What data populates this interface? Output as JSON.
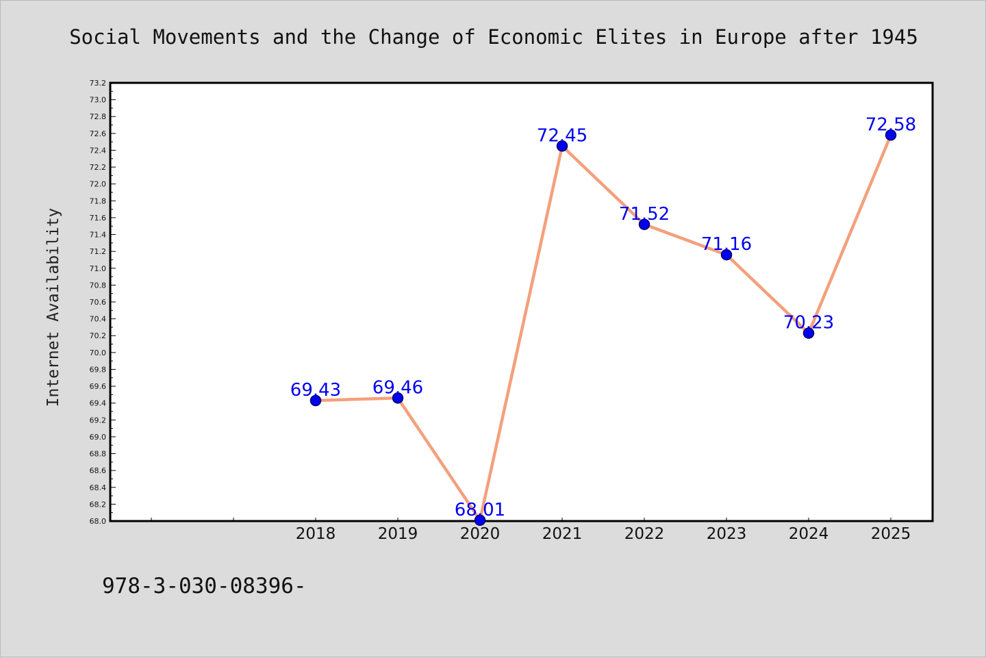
{
  "chart_data": {
    "type": "line",
    "title": "Social Movements and the Change of Economic Elites in Europe after 1945",
    "xlabel": "",
    "ylabel": "Internet Availability",
    "categories": [
      "2018",
      "2019",
      "2020",
      "2021",
      "2022",
      "2023",
      "2024",
      "2025"
    ],
    "series": [
      {
        "values": [
          69.43,
          69.46,
          68.01,
          72.45,
          71.52,
          71.16,
          70.23,
          72.58
        ],
        "data_labels": [
          "69.43",
          "69.46",
          "68.01",
          "72.45",
          "71.52",
          "71.16",
          "70.23",
          "72.58"
        ]
      }
    ],
    "ylim": [
      68.0,
      73.2
    ],
    "yticks": [
      "68.0",
      "68.2",
      "68.4",
      "68.6",
      "68.8",
      "69.0",
      "69.2",
      "69.4",
      "69.6",
      "69.8",
      "70.0",
      "70.2",
      "70.4",
      "70.6",
      "70.8",
      "71.0",
      "71.2",
      "71.4",
      "71.6",
      "71.8",
      "72.0",
      "72.2",
      "72.4",
      "72.6",
      "72.8",
      "73.0",
      "73.2"
    ],
    "grid": false,
    "legend": "none",
    "colors": {
      "line": "#f4a07c",
      "marker": "#0000ee",
      "marker_edge": "#000066",
      "data_label": "#0000ee",
      "plot_background": "#ffffff",
      "figure_background": "#dcdcdc"
    }
  },
  "footer": {
    "text": "978-3-030-08396-"
  }
}
